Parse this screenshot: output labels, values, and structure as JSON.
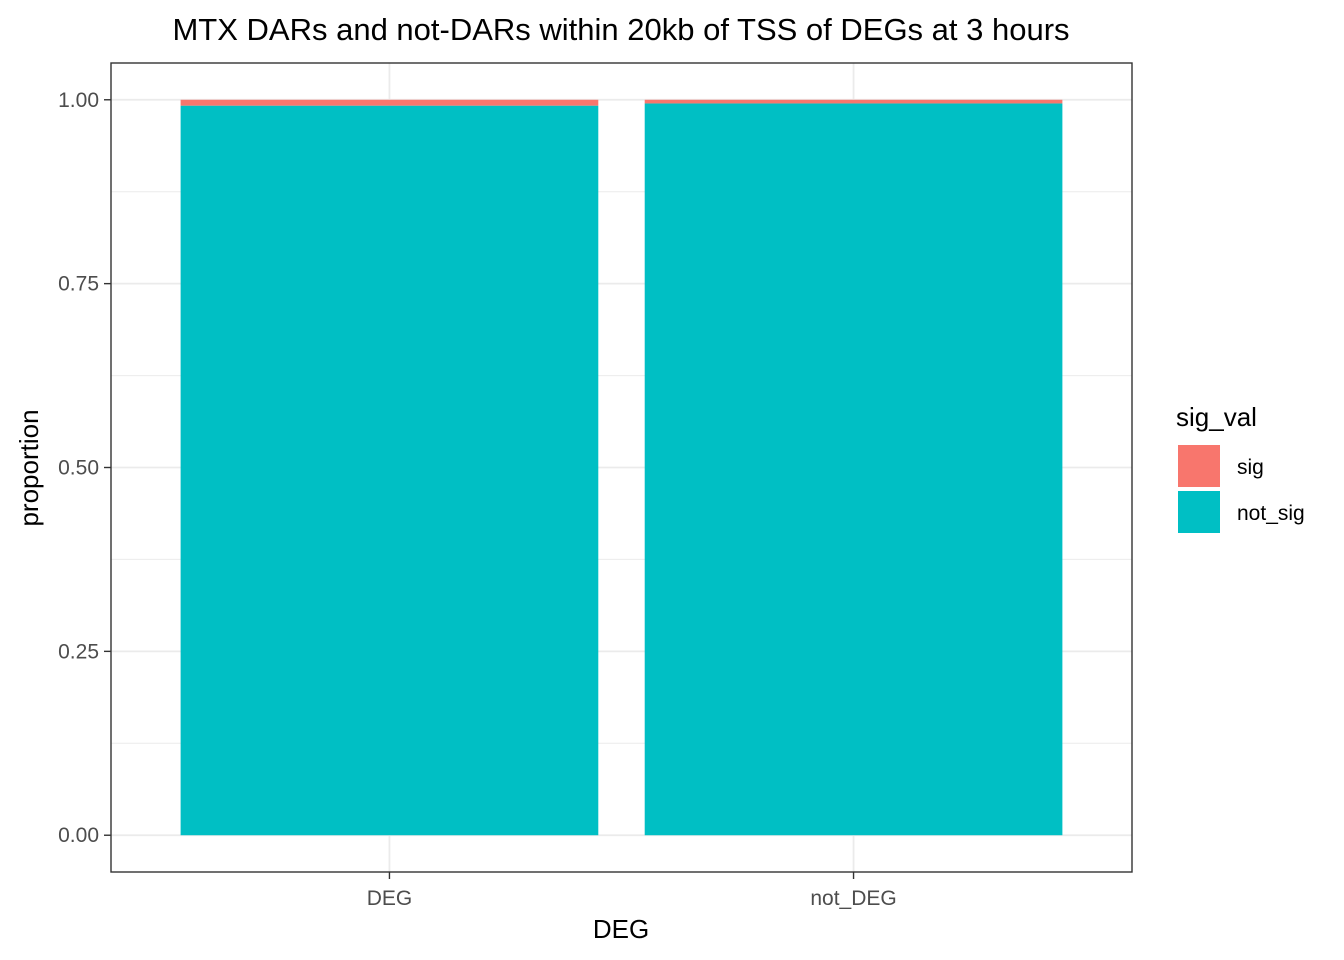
{
  "chart_data": {
    "type": "bar",
    "stacked": true,
    "title": "MTX DARs and not-DARs within 20kb of TSS of DEGs at 3 hours",
    "xlabel": "DEG",
    "ylabel": "proportion",
    "categories": [
      "DEG",
      "not_DEG"
    ],
    "series": [
      {
        "name": "sig",
        "values": [
          0.008,
          0.005
        ],
        "color": "#F8766D"
      },
      {
        "name": "not_sig",
        "values": [
          0.992,
          0.995
        ],
        "color": "#00BFC4"
      }
    ],
    "ylim": [
      -0.05,
      1.05
    ],
    "yticks": [
      0.0,
      0.25,
      0.5,
      0.75,
      1.0
    ],
    "ytick_labels": [
      "0.00",
      "0.25",
      "0.50",
      "0.75",
      "1.00"
    ],
    "grid": true,
    "legend": {
      "title": "sig_val",
      "position": "right",
      "entries": [
        "sig",
        "not_sig"
      ]
    }
  }
}
